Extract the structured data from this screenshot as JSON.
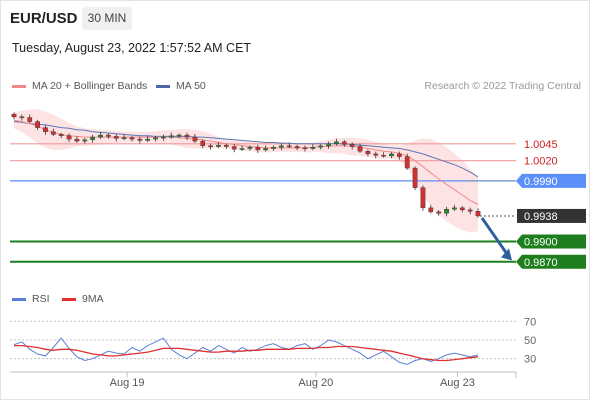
{
  "header": {
    "pair": "EUR/USD",
    "timeframe": "30 MIN",
    "datetime": "Tuesday, August 23, 2022 1:57:52 AM CET",
    "credit": "Research © 2022 Trading Central"
  },
  "legend": {
    "ma20_label": "MA 20 + Bollinger Bands",
    "ma50_label": "MA 50",
    "rsi_label": "RSI",
    "rsi_ma_label": "9MA"
  },
  "colors": {
    "ma20": "#f08b8b",
    "bollinger_fill": "#fcdada",
    "ma50": "#5a78b8",
    "resistance": "#f09a9a",
    "resistance_text": "#cc2222",
    "pivot": "#5b8ff9",
    "support": "#1e7e1e",
    "arrow": "#2f5f9e",
    "candle_up": "#2a8a2a",
    "candle_down": "#d23030",
    "current_box": "#333333",
    "rsi": "#5b7fd6",
    "rsi_ma": "#e03030"
  },
  "chart_data": [
    {
      "type": "candlestick",
      "x_tick_labels": [
        "Aug 19",
        "Aug 20",
        "Aug 23"
      ],
      "ylim": [
        0.984,
        1.011
      ],
      "price_levels": [
        {
          "value": 1.0045,
          "label": "1.0045",
          "kind": "resistance"
        },
        {
          "value": 1.002,
          "label": "1.0020",
          "kind": "resistance"
        },
        {
          "value": 0.999,
          "label": "0.9990",
          "kind": "pivot"
        },
        {
          "value": 0.9938,
          "label": "0.9938",
          "kind": "current"
        },
        {
          "value": 0.99,
          "label": "0.9900",
          "kind": "support"
        },
        {
          "value": 0.987,
          "label": "0.9870",
          "kind": "support"
        }
      ],
      "close_series": [
        1.0085,
        1.0084,
        1.0078,
        1.0069,
        1.0063,
        1.0059,
        1.0057,
        1.0052,
        1.0049,
        1.0051,
        1.0055,
        1.0058,
        1.0056,
        1.0053,
        1.0054,
        1.0052,
        1.005,
        1.0052,
        1.0054,
        1.0055,
        1.0057,
        1.0058,
        1.0055,
        1.0049,
        1.0042,
        1.0041,
        1.0043,
        1.0041,
        1.0037,
        1.0038,
        1.004,
        1.0036,
        1.0038,
        1.004,
        1.0042,
        1.0041,
        1.0039,
        1.0038,
        1.004,
        1.0042,
        1.0045,
        1.0048,
        1.0044,
        1.0041,
        1.0034,
        1.003,
        1.0028,
        1.0027,
        1.003,
        1.0026,
        1.0009,
        0.998,
        0.995,
        0.9944,
        0.9942,
        0.9948,
        0.995,
        0.9947,
        0.9945,
        0.9938
      ],
      "trend_forecast": "down",
      "ma20": [
        1.008,
        1.0078,
        1.0075,
        1.0071,
        1.0066,
        1.0062,
        1.0059,
        1.0057,
        1.0056,
        1.0055,
        1.0055,
        1.0055,
        1.0055,
        1.0055,
        1.0055,
        1.0055,
        1.0055,
        1.0055,
        1.0055,
        1.0055,
        1.0055,
        1.0054,
        1.0053,
        1.0052,
        1.0051,
        1.0049,
        1.0047,
        1.0045,
        1.0044,
        1.0042,
        1.0041,
        1.004,
        1.0039,
        1.0039,
        1.0039,
        1.0039,
        1.0039,
        1.0039,
        1.004,
        1.0041,
        1.0041,
        1.0042,
        1.0042,
        1.0041,
        1.004,
        1.0038,
        1.0036,
        1.0034,
        1.0033,
        1.0031,
        1.0027,
        1.002,
        1.0011,
        1.0002,
        0.9993,
        0.9985,
        0.9977,
        0.9969,
        0.9961,
        0.9955
      ],
      "bollinger_upper": [
        1.0092,
        1.0094,
        1.0096,
        1.0096,
        1.0093,
        1.0088,
        1.0082,
        1.0076,
        1.0071,
        1.0068,
        1.0067,
        1.0066,
        1.0065,
        1.0064,
        1.0063,
        1.0063,
        1.0063,
        1.0063,
        1.0064,
        1.0065,
        1.0066,
        1.0067,
        1.0067,
        1.0066,
        1.0064,
        1.006,
        1.0055,
        1.0052,
        1.005,
        1.0049,
        1.0048,
        1.0047,
        1.0046,
        1.0045,
        1.0045,
        1.0045,
        1.0045,
        1.0046,
        1.0047,
        1.0049,
        1.0051,
        1.0053,
        1.0054,
        1.0054,
        1.0053,
        1.0051,
        1.0048,
        1.0045,
        1.0043,
        1.0042,
        1.0045,
        1.005,
        1.0053,
        1.0052,
        1.0047,
        1.004,
        1.0031,
        1.0021,
        1.0008,
        0.9995
      ],
      "bollinger_lower": [
        1.0068,
        1.0062,
        1.0054,
        1.0046,
        1.0039,
        1.0036,
        1.0036,
        1.0038,
        1.0041,
        1.0042,
        1.0043,
        1.0044,
        1.0045,
        1.0046,
        1.0047,
        1.0047,
        1.0047,
        1.0047,
        1.0046,
        1.0045,
        1.0044,
        1.0041,
        1.0039,
        1.0038,
        1.0038,
        1.0038,
        1.0039,
        1.0038,
        1.0038,
        1.0035,
        1.0034,
        1.0033,
        1.0032,
        1.0033,
        1.0033,
        1.0033,
        1.0033,
        1.0032,
        1.0033,
        1.0033,
        1.0031,
        1.0031,
        1.003,
        1.0028,
        1.0027,
        1.0025,
        1.0024,
        1.0023,
        1.0023,
        1.002,
        1.0009,
        0.999,
        0.9969,
        0.9952,
        0.9939,
        0.993,
        0.9923,
        0.9917,
        0.9914,
        0.9915
      ],
      "ma50": [
        1.0078,
        1.0077,
        1.0075,
        1.0074,
        1.0073,
        1.0071,
        1.0069,
        1.0068,
        1.0066,
        1.0065,
        1.0063,
        1.0062,
        1.0061,
        1.006,
        1.0059,
        1.0058,
        1.0057,
        1.0057,
        1.0056,
        1.0056,
        1.0056,
        1.0056,
        1.0056,
        1.0055,
        1.0055,
        1.0054,
        1.0053,
        1.0052,
        1.0051,
        1.005,
        1.0049,
        1.0048,
        1.0047,
        1.0047,
        1.0046,
        1.0046,
        1.0045,
        1.0045,
        1.0045,
        1.0045,
        1.0045,
        1.0045,
        1.0045,
        1.0044,
        1.0043,
        1.0042,
        1.0041,
        1.004,
        1.0039,
        1.0038,
        1.0036,
        1.0033,
        1.003,
        1.0026,
        1.0022,
        1.0018,
        1.0014,
        1.0009,
        1.0003,
        0.9996
      ]
    },
    {
      "type": "line",
      "ylim": [
        20,
        80
      ],
      "y_ticks": [
        70,
        50,
        30
      ],
      "series": [
        {
          "name": "RSI",
          "values": [
            45,
            48,
            40,
            35,
            33,
            42,
            52,
            41,
            32,
            28,
            30,
            34,
            38,
            36,
            35,
            42,
            38,
            44,
            48,
            52,
            40,
            34,
            30,
            36,
            42,
            38,
            44,
            40,
            36,
            42,
            38,
            40,
            44,
            46,
            42,
            40,
            44,
            46,
            40,
            44,
            50,
            48,
            44,
            40,
            36,
            30,
            34,
            38,
            32,
            26,
            24,
            28,
            30,
            27,
            30,
            34,
            36,
            34,
            32,
            34
          ]
        },
        {
          "name": "9MA",
          "values": [
            44,
            44,
            43,
            42,
            40,
            39,
            40,
            40,
            39,
            37,
            35,
            34,
            33,
            33,
            34,
            35,
            36,
            37,
            39,
            41,
            41,
            41,
            40,
            39,
            38,
            37,
            37,
            38,
            38,
            38,
            39,
            39,
            40,
            40,
            40,
            40,
            41,
            41,
            41,
            42,
            42,
            43,
            43,
            43,
            42,
            41,
            40,
            39,
            38,
            36,
            34,
            32,
            30,
            29,
            28,
            28,
            29,
            30,
            31,
            32
          ]
        }
      ]
    }
  ]
}
